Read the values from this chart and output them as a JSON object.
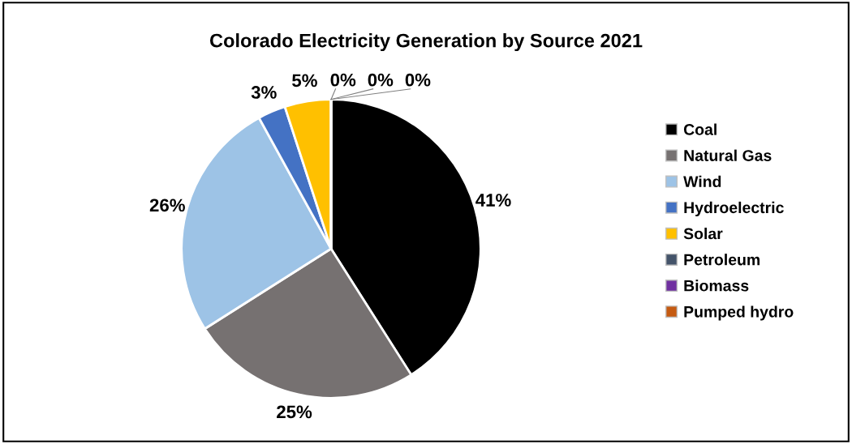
{
  "chart_data": {
    "type": "pie",
    "title": "Colorado Electricity Generation by Source 2021",
    "categories": [
      "Coal",
      "Natural Gas",
      "Wind",
      "Hydroelectric",
      "Solar",
      "Petroleum",
      "Biomass",
      "Pumped hydro"
    ],
    "values": [
      41,
      25,
      26,
      3,
      5,
      0,
      0,
      0
    ],
    "value_labels": [
      "41%",
      "25%",
      "26%",
      "3%",
      "5%",
      "0%",
      "0%",
      "0%"
    ],
    "colors": [
      "#000000",
      "#767171",
      "#9dc3e6",
      "#4472c4",
      "#ffc000",
      "#44546a",
      "#7030a0",
      "#c55a11"
    ],
    "legend": "right"
  }
}
